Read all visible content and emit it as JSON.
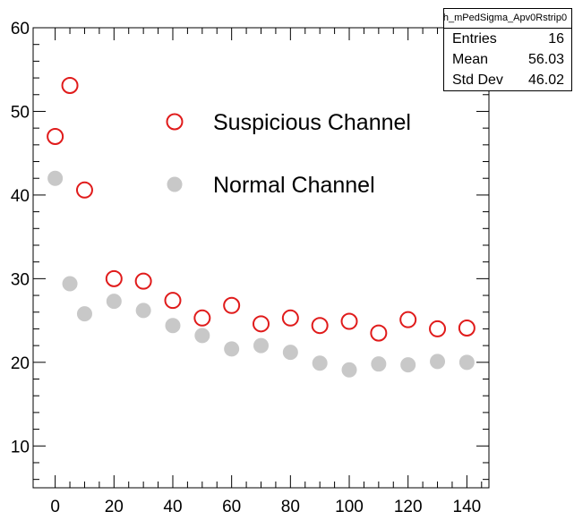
{
  "stats_box": {
    "title": "h_mPedSigma_Apv0Rstrip0",
    "rows": [
      {
        "label": "Entries",
        "value": "16"
      },
      {
        "label": "Mean",
        "value": "56.03"
      },
      {
        "label": "Std Dev",
        "value": "46.02"
      }
    ]
  },
  "chart_data": {
    "type": "scatter",
    "title": "",
    "xlabel": "",
    "ylabel": "",
    "xlim": [
      -7.5,
      147.5
    ],
    "ylim": [
      5,
      60
    ],
    "x_ticks": [
      0,
      20,
      40,
      60,
      80,
      100,
      120,
      140
    ],
    "y_ticks": [
      10,
      20,
      30,
      40,
      50,
      60
    ],
    "grid": false,
    "legend_position": "top-right",
    "series": [
      {
        "name": "Suspicious Channel",
        "marker": "open-circle",
        "color": "#e01b1b",
        "x": [
          0,
          5,
          10,
          20,
          30,
          40,
          50,
          60,
          70,
          80,
          90,
          100,
          110,
          120,
          130,
          140
        ],
        "y": [
          47.0,
          53.1,
          40.6,
          30.0,
          29.7,
          27.4,
          25.3,
          26.8,
          24.6,
          25.3,
          24.4,
          24.9,
          23.5,
          25.1,
          24.0,
          24.1
        ]
      },
      {
        "name": "Normal Channel",
        "marker": "filled-circle",
        "color": "#c8c8c8",
        "x": [
          0,
          5,
          10,
          20,
          30,
          40,
          50,
          60,
          70,
          80,
          90,
          100,
          110,
          120,
          130,
          140
        ],
        "y": [
          42.0,
          29.4,
          25.8,
          27.3,
          26.2,
          24.4,
          23.2,
          21.6,
          22.0,
          21.2,
          19.9,
          19.1,
          19.8,
          19.7,
          20.1,
          20.0
        ]
      }
    ]
  }
}
